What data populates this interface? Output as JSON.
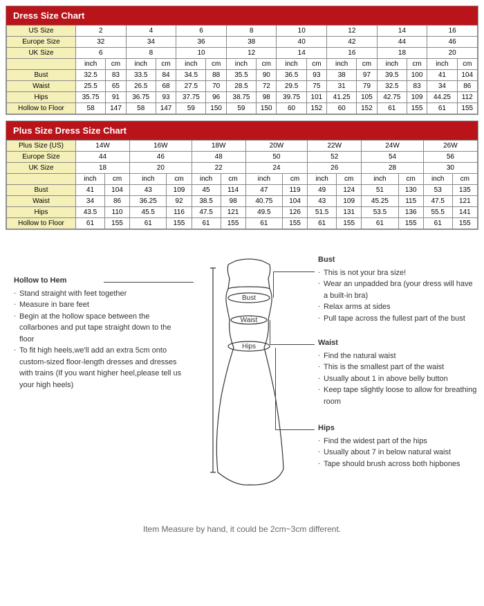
{
  "chart1": {
    "title": "Dress Size Chart",
    "sizeRows": [
      {
        "label": "US Size",
        "vals": [
          "2",
          "4",
          "6",
          "8",
          "10",
          "12",
          "14",
          "16"
        ]
      },
      {
        "label": "Europe Size",
        "vals": [
          "32",
          "34",
          "36",
          "38",
          "40",
          "42",
          "44",
          "46"
        ]
      },
      {
        "label": "UK Size",
        "vals": [
          "6",
          "8",
          "10",
          "12",
          "14",
          "16",
          "18",
          "20"
        ]
      }
    ],
    "unitLabels": [
      "inch",
      "cm"
    ],
    "measureRows": [
      {
        "label": "Bust",
        "vals": [
          "32.5",
          "83",
          "33.5",
          "84",
          "34.5",
          "88",
          "35.5",
          "90",
          "36.5",
          "93",
          "38",
          "97",
          "39.5",
          "100",
          "41",
          "104"
        ]
      },
      {
        "label": "Waist",
        "vals": [
          "25.5",
          "65",
          "26.5",
          "68",
          "27.5",
          "70",
          "28.5",
          "72",
          "29.5",
          "75",
          "31",
          "79",
          "32.5",
          "83",
          "34",
          "86"
        ]
      },
      {
        "label": "Hips",
        "vals": [
          "35.75",
          "91",
          "36.75",
          "93",
          "37.75",
          "96",
          "38.75",
          "98",
          "39.75",
          "101",
          "41.25",
          "105",
          "42.75",
          "109",
          "44.25",
          "112"
        ]
      },
      {
        "label": "Hollow to Floor",
        "vals": [
          "58",
          "147",
          "58",
          "147",
          "59",
          "150",
          "59",
          "150",
          "60",
          "152",
          "60",
          "152",
          "61",
          "155",
          "61",
          "155"
        ]
      }
    ]
  },
  "chart2": {
    "title": "Plus Size Dress Size Chart",
    "sizeRows": [
      {
        "label": "Plus Size (US)",
        "vals": [
          "14W",
          "16W",
          "18W",
          "20W",
          "22W",
          "24W",
          "26W"
        ]
      },
      {
        "label": "Europe Size",
        "vals": [
          "44",
          "46",
          "48",
          "50",
          "52",
          "54",
          "56"
        ]
      },
      {
        "label": "UK Size",
        "vals": [
          "18",
          "20",
          "22",
          "24",
          "26",
          "28",
          "30"
        ]
      }
    ],
    "unitLabels": [
      "inch",
      "cm"
    ],
    "measureRows": [
      {
        "label": "Bust",
        "vals": [
          "41",
          "104",
          "43",
          "109",
          "45",
          "114",
          "47",
          "119",
          "49",
          "124",
          "51",
          "130",
          "53",
          "135"
        ]
      },
      {
        "label": "Waist",
        "vals": [
          "34",
          "86",
          "36.25",
          "92",
          "38.5",
          "98",
          "40.75",
          "104",
          "43",
          "109",
          "45.25",
          "115",
          "47.5",
          "121"
        ]
      },
      {
        "label": "Hips",
        "vals": [
          "43.5",
          "110",
          "45.5",
          "116",
          "47.5",
          "121",
          "49.5",
          "126",
          "51.5",
          "131",
          "53.5",
          "136",
          "55.5",
          "141"
        ]
      },
      {
        "label": "Hollow to Floor",
        "vals": [
          "61",
          "155",
          "61",
          "155",
          "61",
          "155",
          "61",
          "155",
          "61",
          "155",
          "61",
          "155",
          "61",
          "155"
        ]
      }
    ]
  },
  "diagram": {
    "bustLabel": "Bust",
    "waistLabel": "Waist",
    "hipsLabel": "Hips",
    "hollow": {
      "title": "Hollow to Hem",
      "items": [
        "Stand straight with feet together",
        "Measure in bare feet",
        "Begin at the hollow space between the collarbones and put tape straight down to the floor",
        "To fit high heels,we'll add an extra 5cm onto custom-sized floor-length dresses and dresses with trains (If you want higher heel,please tell us your high heels)"
      ]
    },
    "bust": {
      "title": "Bust",
      "items": [
        "This is not your bra size!",
        "Wear an unpadded bra (your dress will have a built-in bra)",
        "Relax arms at sides",
        "Pull tape across the fullest part of the bust"
      ]
    },
    "waist": {
      "title": "Waist",
      "items": [
        "Find the natural waist",
        "This is the smallest part of the waist",
        "Usually about 1 in above belly button",
        "Keep tape slightly loose to allow for breathing room"
      ]
    },
    "hips": {
      "title": "Hips",
      "items": [
        "Find the widest part of the hips",
        "Usually about 7 in below natural waist",
        "Tape should brush across both hipbones"
      ]
    }
  },
  "footer": "Item Measure by hand, it could be 2cm~3cm different."
}
